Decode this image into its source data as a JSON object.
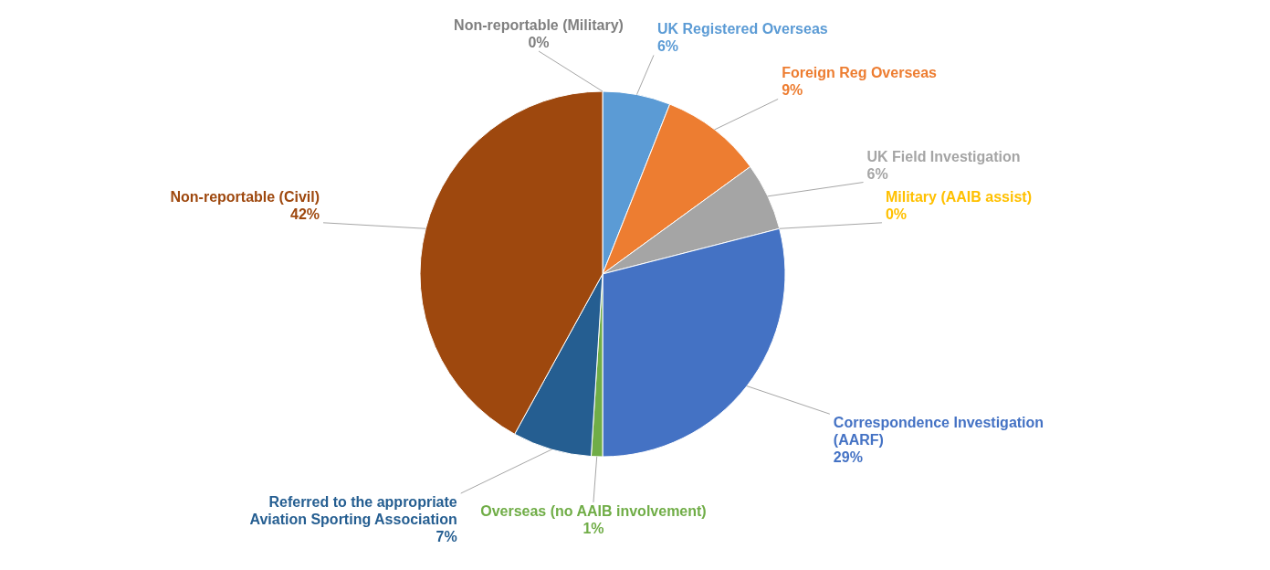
{
  "chart_data": {
    "type": "pie",
    "categories": [
      "UK Registered Overseas",
      "Foreign Reg Overseas",
      "UK Field Investigation",
      "Military (AAIB assist)",
      "Correspondence Investigation (AARF)",
      "Overseas (no AAIB involvement)",
      "Referred to the appropriate Aviation Sporting Association",
      "Non-reportable (Civil)",
      "Non-reportable (Military)"
    ],
    "values": [
      6,
      9,
      6,
      0,
      29,
      1,
      7,
      42,
      0
    ],
    "value_labels": [
      "6%",
      "9%",
      "6%",
      "0%",
      "29%",
      "1%",
      "7%",
      "42%",
      "0%"
    ],
    "colors": [
      "#5b9bd5",
      "#ed7d31",
      "#a5a5a5",
      "#ffc000",
      "#4472c4",
      "#70ad47",
      "#255e91",
      "#9e480e",
      "#7f7f7f"
    ]
  }
}
